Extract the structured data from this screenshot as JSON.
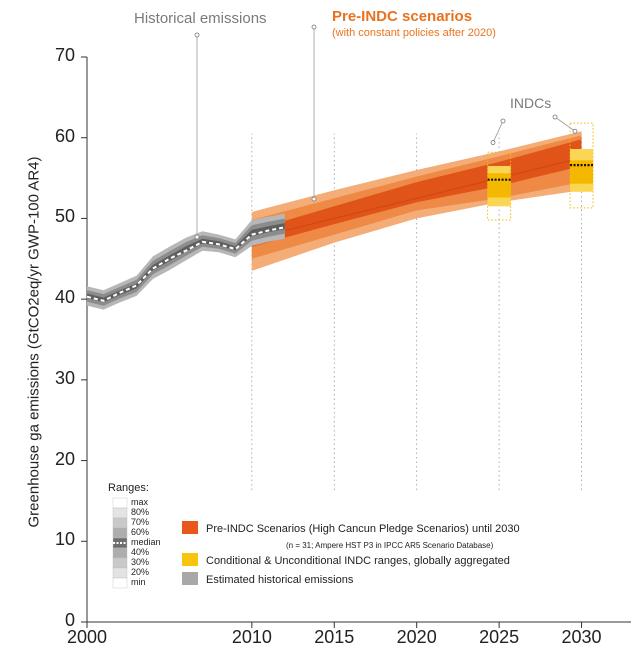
{
  "chart_data": {
    "type": "area",
    "ylabel": "Greenhouse ga emissions (GtCO2eq/yr GWP-100 AR4)",
    "ylim": [
      0,
      70
    ],
    "xlim": [
      2000,
      2033
    ],
    "y_ticks": [
      0,
      10,
      20,
      30,
      40,
      50,
      60,
      70
    ],
    "x_ticks": [
      2000,
      2010,
      2015,
      2020,
      2025,
      2030
    ],
    "annotations": {
      "historical": "Historical emissions",
      "pre_indc": "Pre-INDC scenarios",
      "pre_indc_sub": "(with constant policies after 2020)",
      "indcs": "INDCs"
    },
    "historical": {
      "x": [
        2000,
        2001,
        2002,
        2003,
        2004,
        2005,
        2006,
        2007,
        2008,
        2009,
        2010,
        2011,
        2012
      ],
      "median": [
        40.3,
        39.8,
        40.8,
        41.7,
        43.8,
        45.0,
        46.0,
        47.1,
        46.8,
        46.2,
        48.0,
        48.5,
        48.9
      ],
      "min": [
        39.2,
        38.7,
        39.6,
        40.4,
        42.5,
        43.6,
        44.8,
        46.0,
        45.8,
        45.2,
        46.6,
        47.1,
        47.5
      ],
      "max": [
        41.6,
        41.1,
        42.0,
        42.9,
        45.3,
        46.5,
        47.6,
        48.4,
        48.0,
        47.4,
        49.8,
        50.2,
        50.6
      ]
    },
    "pre_indc": {
      "x": [
        2010,
        2015,
        2020,
        2025,
        2030
      ],
      "max": [
        50.8,
        53.5,
        56.0,
        58.3,
        60.8
      ],
      "p80": [
        49.8,
        52.5,
        55.2,
        57.7,
        60.3
      ],
      "p60": [
        48.5,
        51.5,
        54.5,
        57.0,
        59.8
      ],
      "median": [
        47.5,
        50.0,
        52.5,
        55.0,
        57.5
      ],
      "p40": [
        46.5,
        49.3,
        52.0,
        54.0,
        56.5
      ],
      "p20": [
        45.0,
        48.0,
        51.0,
        52.5,
        54.5
      ],
      "min": [
        43.5,
        47.0,
        50.0,
        52.0,
        53.5
      ]
    },
    "indc": [
      {
        "x": 2025,
        "min": 49.8,
        "p20": 51.5,
        "p40": 52.6,
        "median": 54.8,
        "p60": 55.6,
        "p80": 56.5,
        "max": 58.2
      },
      {
        "x": 2030,
        "min": 51.3,
        "p20": 53.3,
        "p40": 54.3,
        "median": 56.6,
        "p60": 57.2,
        "p80": 58.6,
        "max": 61.8
      }
    ],
    "legend": {
      "ranges_title": "Ranges:",
      "range_labels": [
        "max",
        "80%",
        "70%",
        "60%",
        "median",
        "40%",
        "30%",
        "20%",
        "min"
      ],
      "items": [
        {
          "label": "Pre-INDC Scenarios (High Cancun Pledge Scenarios) until 2030",
          "color": "#e8581a"
        },
        {
          "label": "Conditional & Unconditional INDC ranges, globally aggregated",
          "color": "#f7c50c"
        },
        {
          "label": "Estimated historical emissions",
          "color": "#a8a8a8"
        }
      ],
      "pre_indc_note": "(n = 31; Ampere HST P3 in IPCC AR5 Scenario Database)"
    },
    "colors": {
      "historical_dark": "#5e5e5e",
      "historical_mid": "#8c8c8c",
      "historical_light": "#b7b7b7",
      "pre_indc_dark": "#e0541a",
      "pre_indc_mid": "#ee8a46",
      "pre_indc_light": "#f4ad77",
      "indc_dark": "#f5b800",
      "indc_light": "#fbd654"
    }
  }
}
